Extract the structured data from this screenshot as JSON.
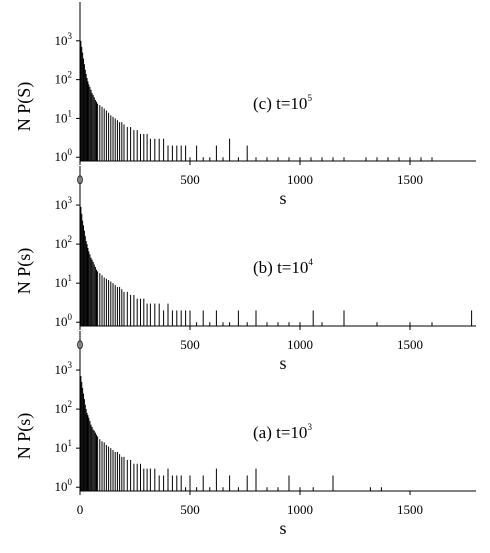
{
  "chart_data": [
    {
      "type": "bar",
      "log_scale": true,
      "color": "#000000",
      "annotation": {
        "text": "(c) t=10",
        "exponent": "5"
      },
      "xlabel": "s",
      "ylabel": "N P(S)",
      "xlim": [
        0,
        1800
      ],
      "xticks": [
        0,
        500,
        1000,
        1500
      ],
      "ylim": [
        0.8,
        10000
      ],
      "yticks": [
        {
          "value": 1,
          "label": "10",
          "exponent": "0"
        },
        {
          "value": 10,
          "label": "10",
          "exponent": "1"
        },
        {
          "value": 100,
          "label": "10",
          "exponent": "2"
        },
        {
          "value": 1000,
          "label": "10",
          "exponent": "3"
        }
      ],
      "x": [
        4,
        8,
        12,
        16,
        20,
        24,
        28,
        32,
        36,
        40,
        45,
        50,
        55,
        60,
        65,
        70,
        75,
        80,
        90,
        100,
        110,
        120,
        130,
        140,
        150,
        160,
        170,
        180,
        190,
        200,
        215,
        230,
        245,
        260,
        275,
        290,
        305,
        320,
        340,
        360,
        380,
        400,
        420,
        440,
        460,
        480,
        500,
        530,
        560,
        590,
        620,
        650,
        680,
        720,
        760,
        800,
        850,
        900,
        950,
        1000,
        1050,
        1100,
        1150,
        1200,
        1300,
        1350,
        1400,
        1450,
        1500,
        1550,
        1600
      ],
      "values": [
        1000,
        700,
        500,
        350,
        250,
        180,
        140,
        110,
        90,
        75,
        65,
        55,
        45,
        40,
        35,
        30,
        27,
        24,
        22,
        20,
        18,
        16,
        14,
        12,
        11,
        10,
        9,
        8,
        8,
        7,
        6,
        6,
        5,
        5,
        4,
        4,
        4,
        3,
        3,
        3,
        3,
        2,
        2,
        2,
        2,
        2,
        1,
        2,
        1,
        1,
        2,
        1,
        3,
        1,
        2,
        1,
        1,
        1,
        1,
        1,
        1,
        1,
        1,
        1,
        1,
        1,
        1,
        1,
        1,
        1,
        1
      ]
    },
    {
      "type": "bar",
      "log_scale": true,
      "color": "#000000",
      "annotation": {
        "text": "(b) t=10",
        "exponent": "4"
      },
      "xlabel": "s",
      "ylabel": "N P(s)",
      "xlim": [
        0,
        1800
      ],
      "xticks": [
        0,
        500,
        1000,
        1500
      ],
      "ylim": [
        0.8,
        10000
      ],
      "yticks": [
        {
          "value": 1,
          "label": "10",
          "exponent": "0"
        },
        {
          "value": 10,
          "label": "10",
          "exponent": "1"
        },
        {
          "value": 100,
          "label": "10",
          "exponent": "2"
        },
        {
          "value": 1000,
          "label": "10",
          "exponent": "3"
        }
      ],
      "x": [
        4,
        8,
        12,
        16,
        20,
        24,
        28,
        32,
        36,
        40,
        45,
        50,
        55,
        60,
        65,
        70,
        75,
        80,
        90,
        100,
        110,
        120,
        130,
        140,
        150,
        160,
        170,
        180,
        190,
        200,
        215,
        230,
        245,
        260,
        275,
        290,
        305,
        320,
        340,
        360,
        380,
        400,
        420,
        440,
        460,
        480,
        500,
        530,
        560,
        590,
        620,
        650,
        680,
        720,
        760,
        800,
        850,
        900,
        950,
        1000,
        1060,
        1100,
        1200,
        1350,
        1500,
        1600,
        1780
      ],
      "values": [
        900,
        600,
        400,
        300,
        220,
        160,
        120,
        100,
        80,
        65,
        55,
        45,
        40,
        35,
        30,
        26,
        22,
        20,
        18,
        16,
        14,
        13,
        12,
        11,
        10,
        9,
        8,
        8,
        7,
        6,
        6,
        5,
        5,
        4,
        4,
        4,
        3,
        3,
        3,
        3,
        2,
        3,
        2,
        2,
        2,
        2,
        2,
        1,
        2,
        1,
        2,
        1,
        1,
        2,
        1,
        2,
        1,
        1,
        1,
        1,
        2,
        1,
        2,
        1,
        1,
        1,
        2
      ]
    },
    {
      "type": "bar",
      "log_scale": true,
      "color": "#000000",
      "annotation": {
        "text": "(a) t=10",
        "exponent": "3"
      },
      "xlabel": "s",
      "ylabel": "N P(s)",
      "xlim": [
        0,
        1800
      ],
      "xticks": [
        0,
        500,
        1000,
        1500
      ],
      "ylim": [
        0.8,
        10000
      ],
      "yticks": [
        {
          "value": 1,
          "label": "10",
          "exponent": "0"
        },
        {
          "value": 10,
          "label": "10",
          "exponent": "1"
        },
        {
          "value": 100,
          "label": "10",
          "exponent": "2"
        },
        {
          "value": 1000,
          "label": "10",
          "exponent": "3"
        }
      ],
      "x": [
        4,
        8,
        12,
        16,
        20,
        24,
        28,
        32,
        36,
        40,
        45,
        50,
        55,
        60,
        65,
        70,
        75,
        80,
        90,
        100,
        110,
        120,
        130,
        140,
        150,
        160,
        170,
        180,
        190,
        200,
        215,
        230,
        245,
        260,
        275,
        290,
        305,
        320,
        340,
        360,
        380,
        400,
        420,
        440,
        460,
        480,
        500,
        530,
        560,
        590,
        620,
        650,
        680,
        720,
        760,
        800,
        850,
        900,
        950,
        1000,
        1060,
        1150,
        1320,
        1370
      ],
      "values": [
        700,
        500,
        350,
        250,
        180,
        130,
        100,
        80,
        70,
        60,
        50,
        40,
        35,
        30,
        28,
        25,
        22,
        20,
        17,
        15,
        14,
        12,
        11,
        10,
        9,
        8,
        8,
        7,
        6,
        6,
        5,
        5,
        4,
        4,
        4,
        3,
        3,
        3,
        3,
        2,
        2,
        3,
        2,
        2,
        2,
        1,
        2,
        1,
        2,
        1,
        3,
        1,
        2,
        1,
        2,
        3,
        1,
        1,
        2,
        1,
        1,
        2,
        1,
        1
      ]
    }
  ]
}
